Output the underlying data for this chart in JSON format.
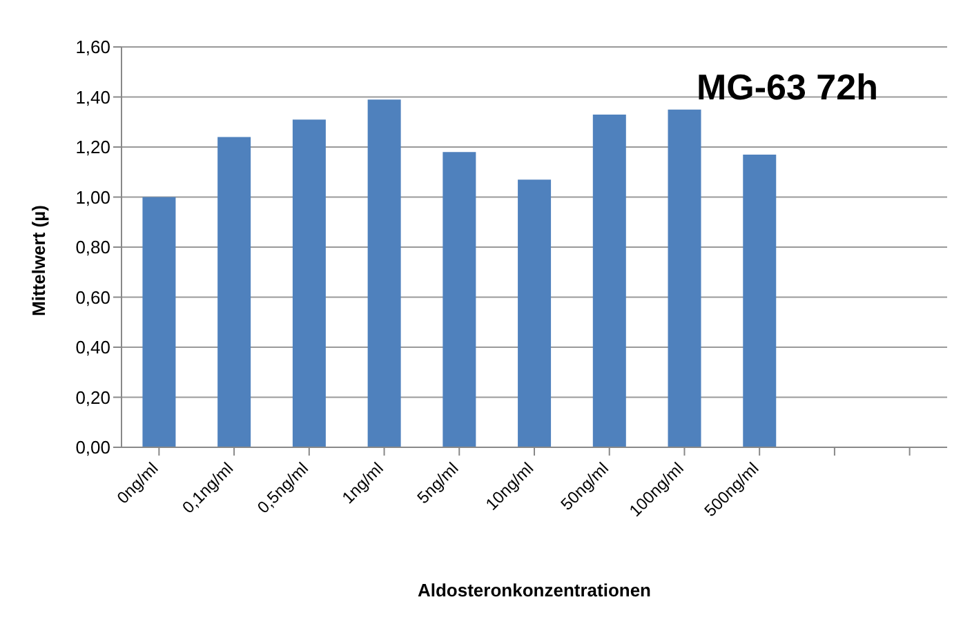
{
  "chart_data": {
    "type": "bar",
    "title": "MG-63 72h",
    "xlabel": "Aldosteronkonzentrationen",
    "ylabel": "Mittelwert (µ)",
    "categories": [
      "0ng/ml",
      "0,1ng/ml",
      "0,5ng/ml",
      "1ng/ml",
      "5ng/ml",
      "10ng/ml",
      "50ng/ml",
      "100ng/ml",
      "500ng/ml",
      null,
      null
    ],
    "values": [
      1.0,
      1.24,
      1.31,
      1.39,
      1.18,
      1.07,
      1.33,
      1.35,
      1.17,
      null,
      null
    ],
    "color": "#4f81bd",
    "ylim": [
      0,
      1.6
    ],
    "yticks": [
      {
        "value": 0,
        "label": "0,00"
      },
      {
        "value": 0.2,
        "label": "0,20"
      },
      {
        "value": 0.4,
        "label": "0,40"
      },
      {
        "value": 0.6,
        "label": "0,60"
      },
      {
        "value": 0.8,
        "label": "0,80"
      },
      {
        "value": 1.0,
        "label": "1,00"
      },
      {
        "value": 1.2,
        "label": "1,20"
      },
      {
        "value": 1.4,
        "label": "1,40"
      },
      {
        "value": 1.6,
        "label": "1,60"
      }
    ],
    "grid": "y"
  }
}
